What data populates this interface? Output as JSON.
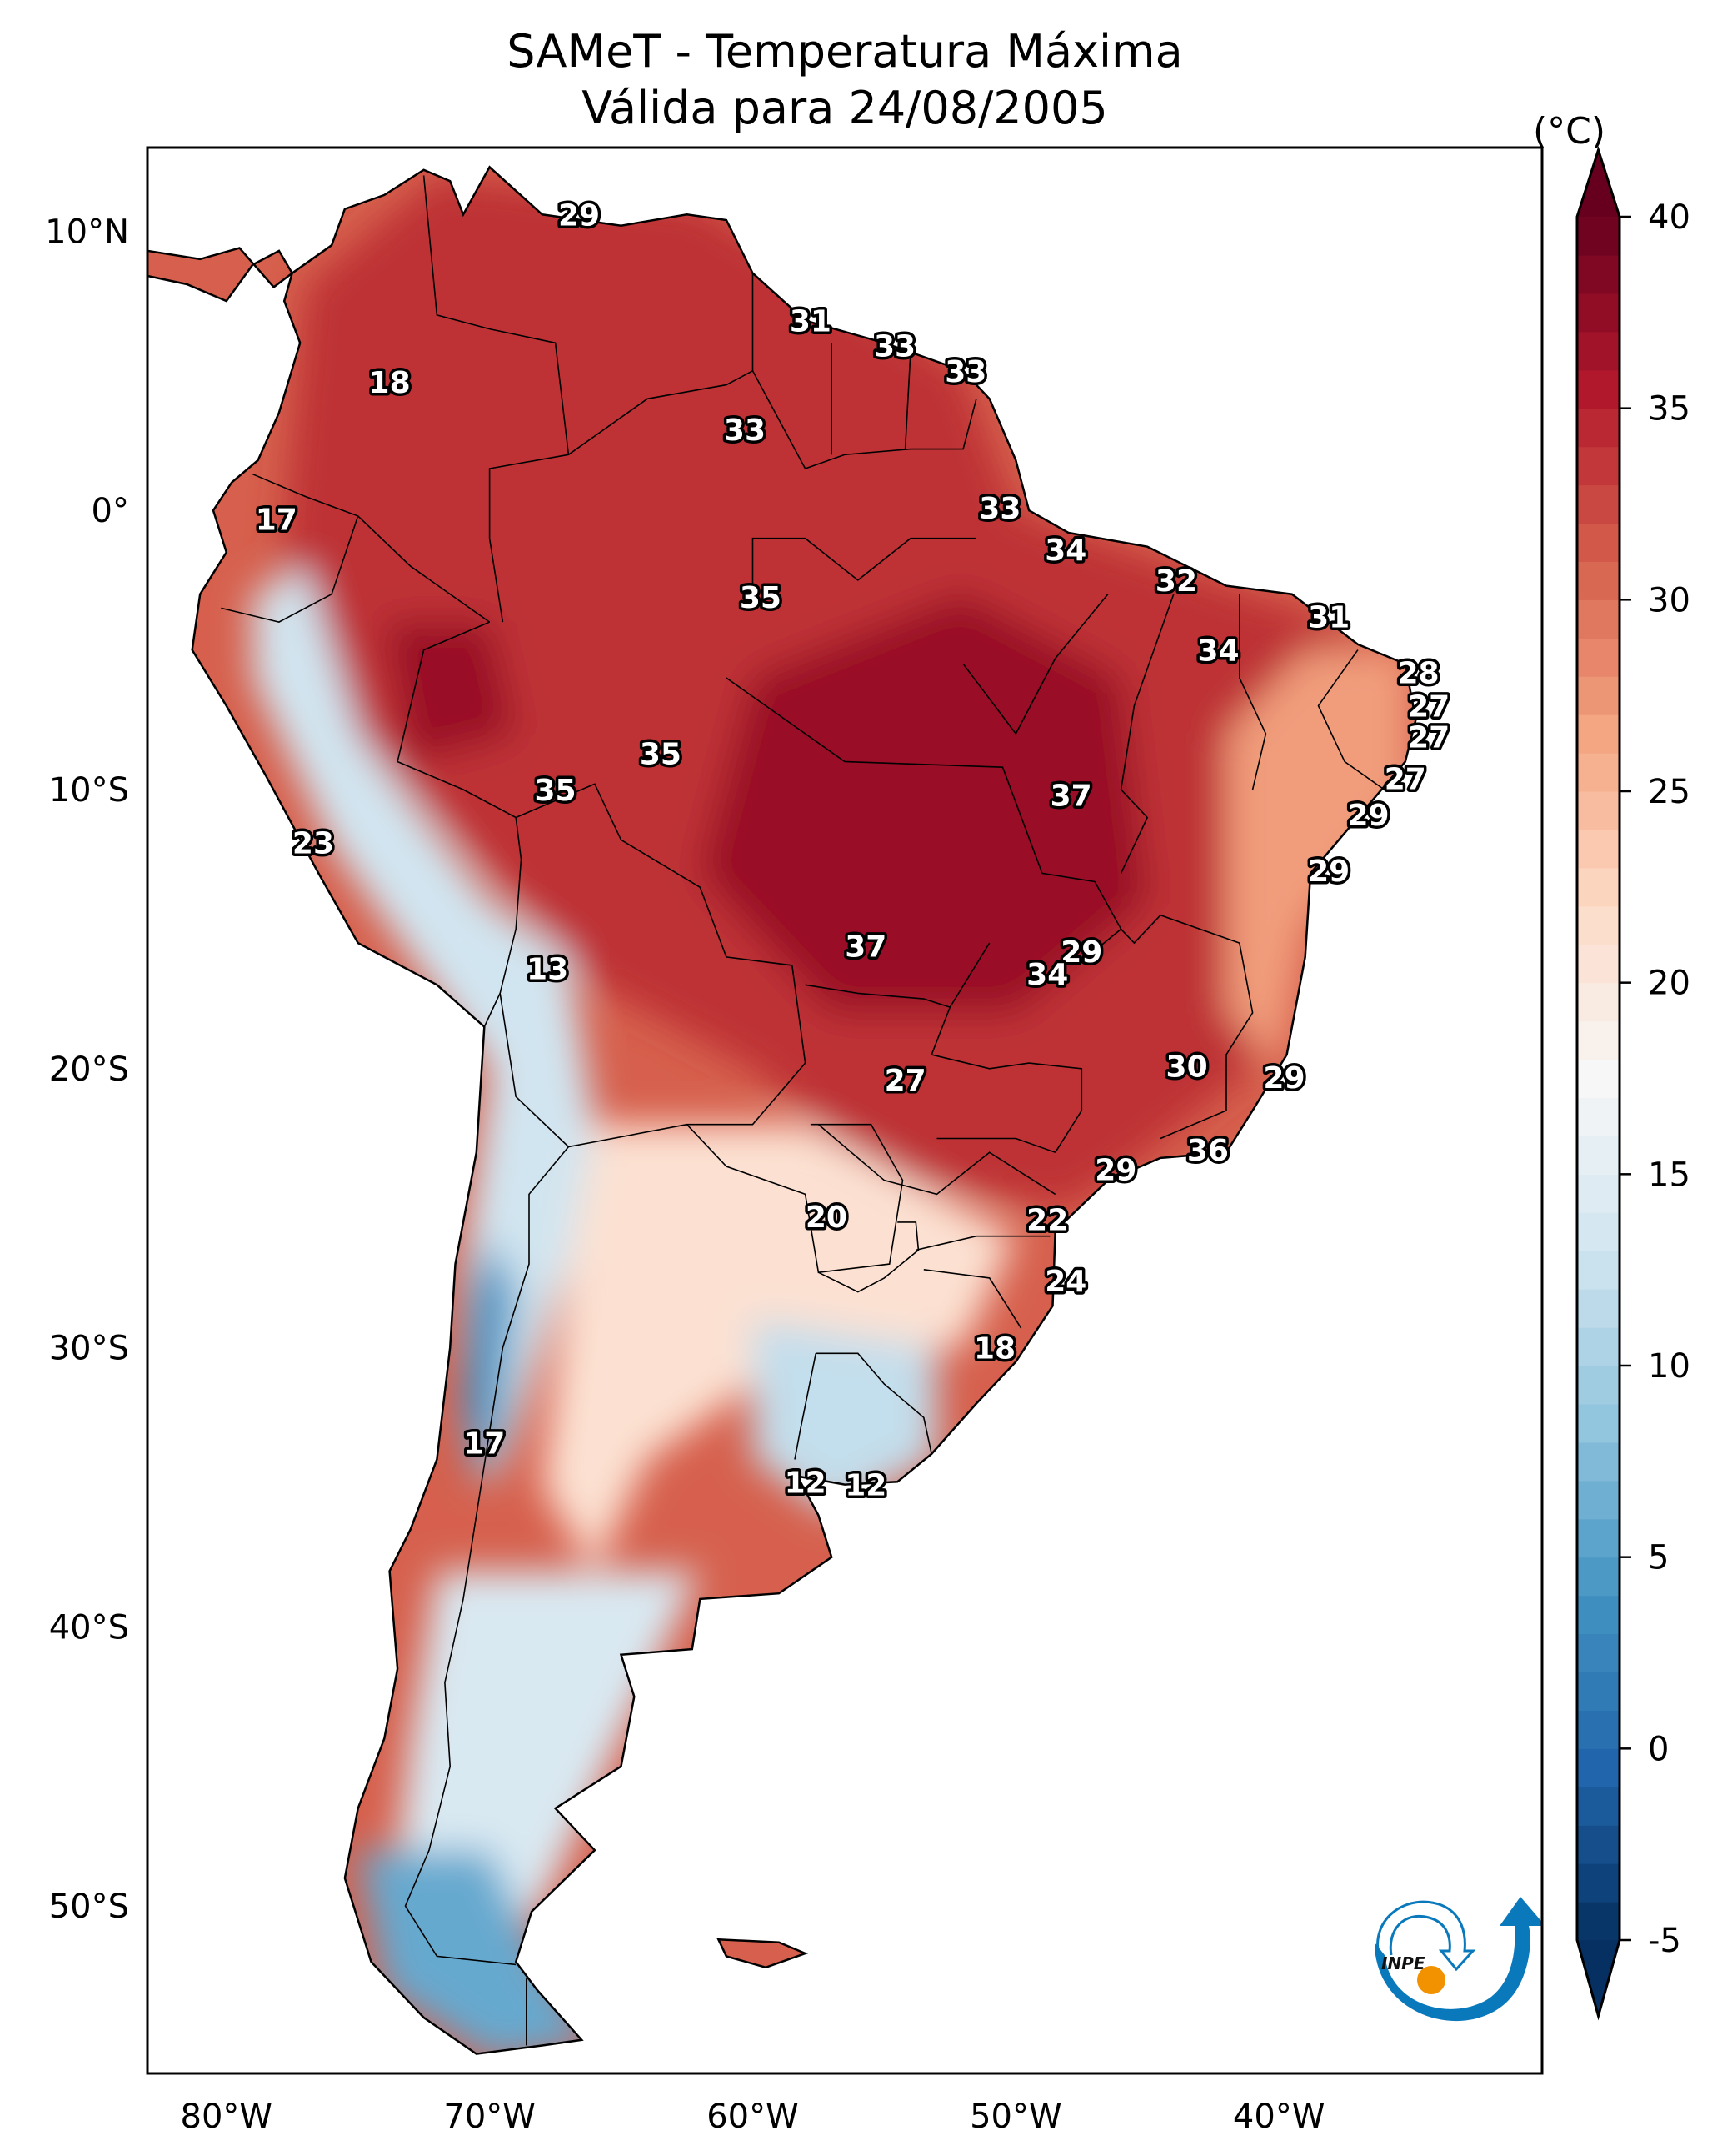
{
  "chart_data": {
    "type": "heatmap",
    "title": "SAMeT - Temperatura Máxima",
    "subtitle": "Válida para 24/08/2005",
    "map_region": "South America",
    "variable": "Temperatura Máxima",
    "units": "(°C)",
    "lon_range": [
      -83,
      -30
    ],
    "lat_range": [
      -56,
      13
    ],
    "x_ticks": [
      "80°W",
      "70°W",
      "60°W",
      "50°W",
      "40°W"
    ],
    "x_tick_values": [
      -80,
      -70,
      -60,
      -50,
      -40
    ],
    "y_ticks": [
      "10°N",
      "0°",
      "10°S",
      "20°S",
      "30°S",
      "40°S",
      "50°S"
    ],
    "y_tick_values": [
      10,
      0,
      -10,
      -20,
      -30,
      -40,
      -50
    ],
    "colorbar": {
      "label": "(°C)",
      "range": [
        -5,
        40
      ],
      "ticks": [
        -5,
        0,
        5,
        10,
        15,
        20,
        25,
        30,
        35,
        40
      ],
      "tick_labels": [
        "-5",
        "0",
        "5",
        "10",
        "15",
        "20",
        "25",
        "30",
        "35",
        "40"
      ],
      "extend": "both",
      "colormap": "RdBu_r",
      "colors": [
        "#053061",
        "#2166ac",
        "#4393c3",
        "#92c5de",
        "#d1e5f0",
        "#f7f7f7",
        "#fddbc7",
        "#f4a582",
        "#d6604d",
        "#b2182b",
        "#67001f"
      ]
    },
    "stations": [
      {
        "value": 29,
        "lon": -66.6,
        "lat": 10.6
      },
      {
        "value": 31,
        "lon": -57.8,
        "lat": 6.8
      },
      {
        "value": 33,
        "lon": -54.6,
        "lat": 5.9
      },
      {
        "value": 33,
        "lon": -51.9,
        "lat": 5.0
      },
      {
        "value": 18,
        "lon": -73.8,
        "lat": 4.6
      },
      {
        "value": 33,
        "lon": -60.3,
        "lat": 2.9
      },
      {
        "value": 17,
        "lon": -78.1,
        "lat": -0.3
      },
      {
        "value": 33,
        "lon": -50.6,
        "lat": 0.1
      },
      {
        "value": 34,
        "lon": -48.1,
        "lat": -1.4
      },
      {
        "value": 35,
        "lon": -59.7,
        "lat": -3.1
      },
      {
        "value": 32,
        "lon": -43.9,
        "lat": -2.5
      },
      {
        "value": 31,
        "lon": -38.1,
        "lat": -3.8
      },
      {
        "value": 34,
        "lon": -42.3,
        "lat": -5.0
      },
      {
        "value": 28,
        "lon": -34.7,
        "lat": -5.8
      },
      {
        "value": 27,
        "lon": -34.3,
        "lat": -7.0
      },
      {
        "value": 27,
        "lon": -34.3,
        "lat": -8.1
      },
      {
        "value": 35,
        "lon": -63.5,
        "lat": -8.7
      },
      {
        "value": 35,
        "lon": -67.5,
        "lat": -10.0
      },
      {
        "value": 37,
        "lon": -47.9,
        "lat": -10.2
      },
      {
        "value": 27,
        "lon": -35.2,
        "lat": -9.6
      },
      {
        "value": 29,
        "lon": -36.6,
        "lat": -10.9
      },
      {
        "value": 23,
        "lon": -76.7,
        "lat": -11.9
      },
      {
        "value": 29,
        "lon": -38.1,
        "lat": -12.9
      },
      {
        "value": 13,
        "lon": -67.8,
        "lat": -16.4
      },
      {
        "value": 37,
        "lon": -55.7,
        "lat": -15.6
      },
      {
        "value": 29,
        "lon": -47.5,
        "lat": -15.8
      },
      {
        "value": 34,
        "lon": -48.8,
        "lat": -16.6
      },
      {
        "value": 30,
        "lon": -43.5,
        "lat": -19.9
      },
      {
        "value": 29,
        "lon": -39.8,
        "lat": -20.3
      },
      {
        "value": 27,
        "lon": -54.2,
        "lat": -20.4
      },
      {
        "value": 36,
        "lon": -42.7,
        "lat": -22.9
      },
      {
        "value": 29,
        "lon": -46.2,
        "lat": -23.6
      },
      {
        "value": 20,
        "lon": -57.2,
        "lat": -25.3
      },
      {
        "value": 22,
        "lon": -48.8,
        "lat": -25.4
      },
      {
        "value": 24,
        "lon": -48.1,
        "lat": -27.6
      },
      {
        "value": 18,
        "lon": -50.8,
        "lat": -30.0
      },
      {
        "value": 17,
        "lon": -70.2,
        "lat": -33.4
      },
      {
        "value": 12,
        "lon": -58.0,
        "lat": -34.8
      },
      {
        "value": 12,
        "lon": -55.7,
        "lat": -34.9
      }
    ],
    "field_regions": [
      {
        "name": "amazon-north",
        "temp_c": 34,
        "polygon": [
          [
            -77,
            8
          ],
          [
            -72,
            12
          ],
          [
            -62,
            11
          ],
          [
            -52,
            5
          ],
          [
            -50,
            0
          ],
          [
            -44,
            -2
          ],
          [
            -38,
            -4
          ],
          [
            -35,
            -6
          ],
          [
            -36,
            -10
          ],
          [
            -40,
            -13
          ],
          [
            -41,
            -20
          ],
          [
            -45,
            -23
          ],
          [
            -48,
            -25
          ],
          [
            -55,
            -24
          ],
          [
            -60,
            -20
          ],
          [
            -66,
            -17
          ],
          [
            -70,
            -13
          ],
          [
            -75,
            -8
          ],
          [
            -78,
            -3
          ]
        ]
      },
      {
        "name": "central-brazil-hot",
        "temp_c": 37,
        "polygon": [
          [
            -60,
            -6
          ],
          [
            -52,
            -3
          ],
          [
            -46,
            -6
          ],
          [
            -45,
            -14
          ],
          [
            -50,
            -18
          ],
          [
            -57,
            -18
          ],
          [
            -62,
            -13
          ]
        ]
      },
      {
        "name": "western-amazon-hot",
        "temp_c": 37,
        "polygon": [
          [
            -74,
            -4
          ],
          [
            -70,
            -4
          ],
          [
            -69,
            -8
          ],
          [
            -73,
            -9
          ]
        ]
      },
      {
        "name": "northeast-coast",
        "temp_c": 27,
        "polygon": [
          [
            -39,
            -5
          ],
          [
            -35,
            -5
          ],
          [
            -35,
            -10
          ],
          [
            -39,
            -15
          ],
          [
            -40,
            -20
          ],
          [
            -42,
            -18
          ],
          [
            -42,
            -8
          ]
        ]
      },
      {
        "name": "andes-cold",
        "temp_c": 13,
        "polygon": [
          [
            -79,
            -3
          ],
          [
            -77,
            -2
          ],
          [
            -75,
            -8
          ],
          [
            -70,
            -14
          ],
          [
            -67,
            -16
          ],
          [
            -66,
            -22
          ],
          [
            -67,
            -27
          ],
          [
            -69,
            -33
          ],
          [
            -70,
            -35
          ],
          [
            -71,
            -33
          ],
          [
            -71,
            -27
          ],
          [
            -70,
            -20
          ],
          [
            -73,
            -16
          ],
          [
            -76,
            -12
          ],
          [
            -79,
            -6
          ]
        ]
      },
      {
        "name": "high-andes-very-cold",
        "temp_c": 4,
        "polygon": [
          [
            -70,
            -26
          ],
          [
            -69,
            -28
          ],
          [
            -69.5,
            -33
          ],
          [
            -70.5,
            -35
          ],
          [
            -71,
            -32
          ],
          [
            -70.7,
            -28
          ]
        ]
      },
      {
        "name": "southern-cone-mild",
        "temp_c": 21,
        "polygon": [
          [
            -66,
            -22
          ],
          [
            -58,
            -22
          ],
          [
            -50,
            -26
          ],
          [
            -52,
            -30
          ],
          [
            -58,
            -30
          ],
          [
            -64,
            -34
          ],
          [
            -66,
            -38
          ],
          [
            -68,
            -35
          ],
          [
            -67,
            -27
          ]
        ]
      },
      {
        "name": "pampas-cool",
        "temp_c": 12,
        "polygon": [
          [
            -60,
            -29
          ],
          [
            -53,
            -30
          ],
          [
            -53,
            -34
          ],
          [
            -57,
            -36
          ],
          [
            -60,
            -34
          ]
        ]
      },
      {
        "name": "patagonia-cool",
        "temp_c": 14,
        "polygon": [
          [
            -72,
            -38
          ],
          [
            -62,
            -38
          ],
          [
            -64,
            -42
          ],
          [
            -66,
            -46
          ],
          [
            -68,
            -50
          ],
          [
            -70,
            -52
          ],
          [
            -74,
            -52
          ],
          [
            -73,
            -44
          ]
        ]
      },
      {
        "name": "patagonia-south-cold",
        "temp_c": 6,
        "polygon": [
          [
            -75,
            -48
          ],
          [
            -70,
            -48
          ],
          [
            -68,
            -52
          ],
          [
            -66,
            -55
          ],
          [
            -70,
            -55.5
          ],
          [
            -74,
            -53
          ]
        ]
      }
    ],
    "legend_placement": "right",
    "grid": false,
    "logo": "INPE"
  },
  "labels": {
    "title": "SAMeT - Temperatura Máxima",
    "subtitle": "Válida para 24/08/2005",
    "colorbar_unit": "(°C)",
    "logo_text": "INPE"
  }
}
